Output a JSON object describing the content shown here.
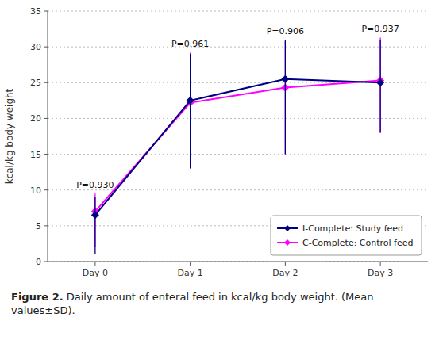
{
  "chart_data": {
    "type": "line",
    "categories": [
      "Day 0",
      "Day 1",
      "Day 2",
      "Day 3"
    ],
    "series": [
      {
        "name": "I-Complete: Study feed",
        "color": "#000080",
        "values": [
          6.5,
          22.5,
          25.5,
          25.0
        ],
        "error_lo": [
          5.5,
          9.5,
          10.5,
          7.0
        ],
        "error_hi": [
          2.5,
          6.5,
          5.5,
          6.0
        ]
      },
      {
        "name": "C-Complete: Control feed",
        "color": "#FF00FF",
        "values": [
          7.0,
          22.2,
          24.3,
          25.3
        ],
        "error_lo": [
          5.0,
          9.0,
          9.3,
          7.3
        ],
        "error_hi": [
          2.5,
          7.0,
          6.5,
          6.0
        ]
      }
    ],
    "marker": "diamond",
    "annotations": [
      "P=0.930",
      "P=0.961",
      "P=0.906",
      "P=0.937"
    ],
    "ylabel": "kcal/kg body weight",
    "ylim": [
      0,
      35
    ],
    "yticks": [
      0,
      5,
      10,
      15,
      20,
      25,
      30,
      35
    ],
    "grid": true,
    "legend": "lower right",
    "caption": [
      "Figure 2.",
      "Daily amount of enteral feed in kcal/kg body weight. (Mean values±SD)."
    ]
  }
}
